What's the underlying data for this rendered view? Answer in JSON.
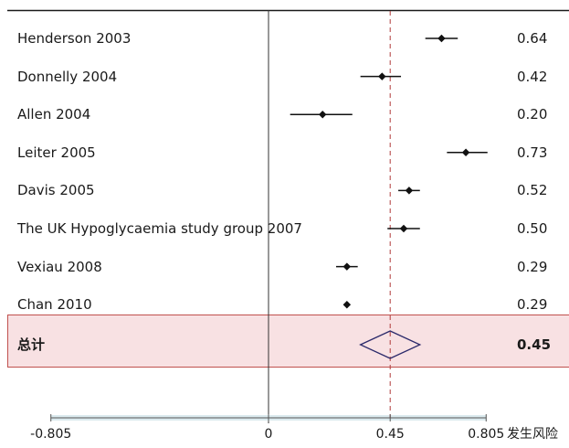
{
  "chart_data": {
    "type": "forest",
    "studies": [
      {
        "label": "Henderson 2003",
        "estimate": 0.64,
        "ci": [
          0.58,
          0.7
        ],
        "value_text": "0.64"
      },
      {
        "label": "Donnelly 2004",
        "estimate": 0.42,
        "ci": [
          0.34,
          0.49
        ],
        "value_text": "0.42"
      },
      {
        "label": "Allen 2004",
        "estimate": 0.2,
        "ci": [
          0.08,
          0.31
        ],
        "value_text": "0.20"
      },
      {
        "label": "Leiter 2005",
        "estimate": 0.73,
        "ci": [
          0.66,
          0.81
        ],
        "value_text": "0.73"
      },
      {
        "label": "Davis 2005",
        "estimate": 0.52,
        "ci": [
          0.48,
          0.56
        ],
        "value_text": "0.52"
      },
      {
        "label": "The UK Hypoglycaemia study group 2007",
        "estimate": 0.5,
        "ci": [
          0.44,
          0.56
        ],
        "value_text": "0.50"
      },
      {
        "label": "Vexiau 2008",
        "estimate": 0.29,
        "ci": [
          0.25,
          0.33
        ],
        "value_text": "0.29"
      },
      {
        "label": "Chan 2010",
        "estimate": 0.29,
        "ci": [
          0.28,
          0.3
        ],
        "value_text": "0.29"
      }
    ],
    "total": {
      "label": "总计",
      "estimate": 0.45,
      "ci": [
        0.34,
        0.56
      ],
      "value_text": "0.45"
    },
    "x_ticks": [
      "-0.805",
      "0",
      "0.45",
      "0.805"
    ],
    "x_tick_values": [
      -0.805,
      0,
      0.45,
      0.805
    ],
    "xlim": [
      -0.805,
      0.805
    ],
    "xlabel": "发生风险",
    "reference_line": 0.45,
    "colors": {
      "total_band": "#f8e1e3",
      "total_border": "#c0504d",
      "diamond": "#2c2a6b",
      "ref_line": "#b03a3a",
      "axis_band": "#dbeaee"
    }
  }
}
